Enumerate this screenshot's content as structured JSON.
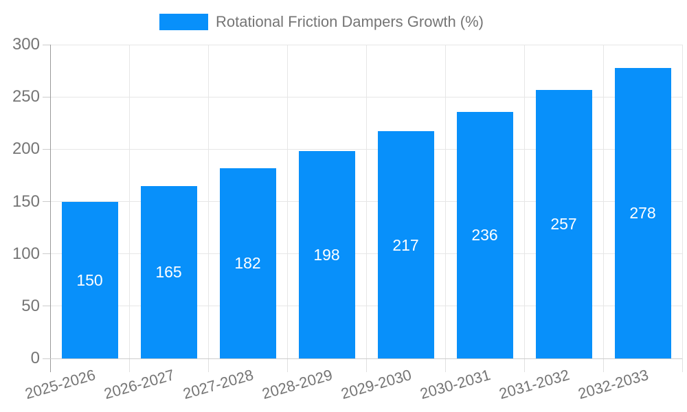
{
  "chart_data": {
    "type": "bar",
    "title": "Rotational Friction Dampers Growth (%)",
    "legend_label": "Rotational Friction Dampers Growth (%)",
    "legend_position": "top",
    "categories": [
      "2025-2026",
      "2026-2027",
      "2027-2028",
      "2028-2029",
      "2029-2030",
      "2030-2031",
      "2031-2032",
      "2032-2033"
    ],
    "values": [
      150,
      165,
      182,
      198,
      217,
      236,
      257,
      278
    ],
    "xlabel": "",
    "ylabel": "",
    "ylim": [
      0,
      300
    ],
    "yticks": [
      0,
      50,
      100,
      150,
      200,
      250,
      300
    ],
    "grid": true,
    "value_labels": "inside-center",
    "colors": {
      "bar": "#0890fa",
      "axis_text": "#757575",
      "value_label": "#ffffff",
      "gridline": "#e6e6e6",
      "axis_line": "#999999",
      "tick": "#cccccc"
    }
  }
}
